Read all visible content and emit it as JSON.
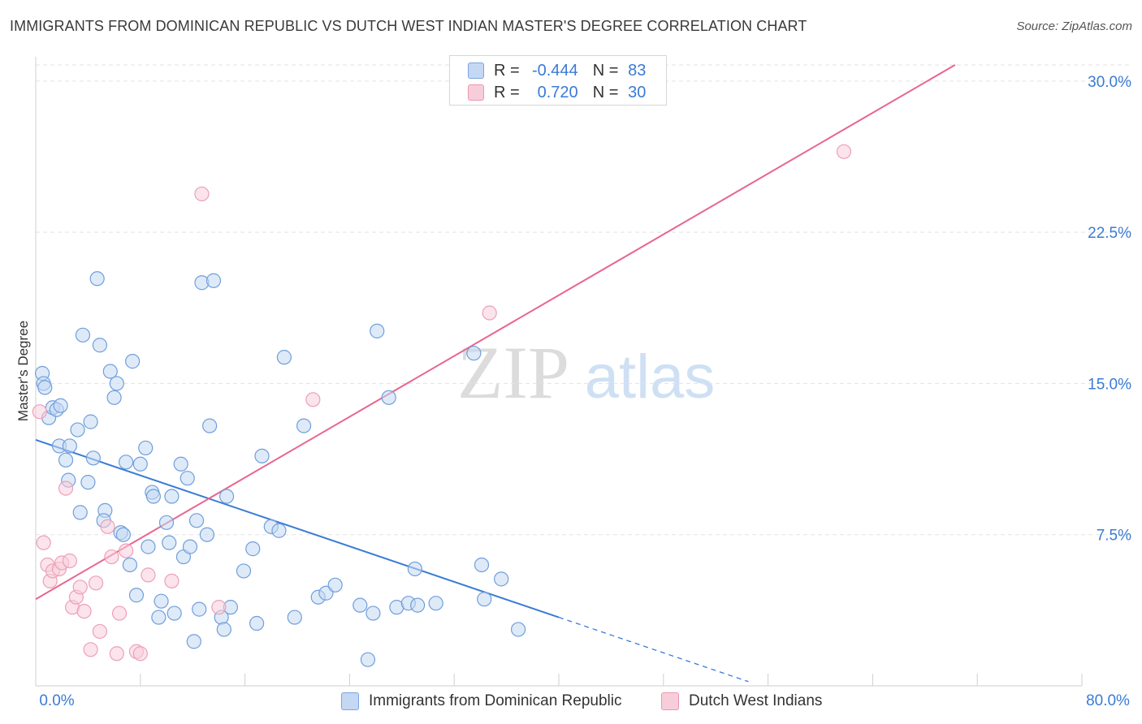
{
  "title": "IMMIGRANTS FROM DOMINICAN REPUBLIC VS DUTCH WEST INDIAN MASTER'S DEGREE CORRELATION CHART",
  "source": "Source: ZipAtlas.com",
  "colors": {
    "blue": "#3a7bd5",
    "blue_fill": "#c5d8f3",
    "pink": "#e8668f",
    "pink_fill": "#f8cdda",
    "grid": "#e3e3e3",
    "tick_label": "#3a7bd5"
  },
  "legend": {
    "series1": {
      "r_label": "R =",
      "r_value": "-0.444",
      "n_label": "N =",
      "n_value": "83"
    },
    "series2": {
      "r_label": "R =",
      "r_value": "0.720",
      "n_label": "N =",
      "n_value": "30"
    }
  },
  "watermark": {
    "zip": "ZIP",
    "atlas": "atlas"
  },
  "chart_data": {
    "type": "scatter",
    "title": "IMMIGRANTS FROM DOMINICAN REPUBLIC VS DUTCH WEST INDIAN MASTER'S DEGREE CORRELATION CHART",
    "xlabel": "",
    "ylabel": "Master's Degree",
    "xlim": [
      0,
      80
    ],
    "ylim": [
      0,
      30.8
    ],
    "x_tick_labels": [
      "0.0%",
      "80.0%"
    ],
    "y_ticks": [
      7.5,
      15.0,
      22.5,
      30.0
    ],
    "y_tick_labels": [
      "7.5%",
      "15.0%",
      "22.5%",
      "30.0%"
    ],
    "legend_position": "top-center",
    "series": [
      {
        "name": "Immigrants from Dominican Republic",
        "color": "#3a7bd5",
        "r": -0.444,
        "n": 83,
        "trend": {
          "x0": 0,
          "y0": 12.2,
          "x1": 40,
          "y1": 3.4,
          "dash_to_x": 54.5
        },
        "points": [
          [
            0.5,
            15.5
          ],
          [
            0.6,
            15.0
          ],
          [
            0.7,
            14.8
          ],
          [
            1.0,
            13.3
          ],
          [
            1.3,
            13.8
          ],
          [
            1.6,
            13.7
          ],
          [
            1.9,
            13.9
          ],
          [
            1.8,
            11.9
          ],
          [
            2.3,
            11.2
          ],
          [
            2.6,
            11.9
          ],
          [
            2.5,
            10.2
          ],
          [
            3.2,
            12.7
          ],
          [
            3.4,
            8.6
          ],
          [
            3.6,
            17.4
          ],
          [
            4.0,
            10.1
          ],
          [
            4.2,
            13.1
          ],
          [
            4.4,
            11.3
          ],
          [
            4.7,
            20.2
          ],
          [
            4.9,
            16.9
          ],
          [
            5.3,
            8.7
          ],
          [
            5.2,
            8.2
          ],
          [
            5.7,
            15.6
          ],
          [
            6.0,
            14.3
          ],
          [
            6.2,
            15.0
          ],
          [
            6.5,
            7.6
          ],
          [
            6.7,
            7.5
          ],
          [
            6.9,
            11.1
          ],
          [
            7.2,
            6.0
          ],
          [
            7.4,
            16.1
          ],
          [
            7.7,
            4.5
          ],
          [
            8.0,
            11.0
          ],
          [
            8.4,
            11.8
          ],
          [
            8.6,
            6.9
          ],
          [
            8.9,
            9.6
          ],
          [
            9.0,
            9.4
          ],
          [
            9.4,
            3.4
          ],
          [
            9.6,
            4.2
          ],
          [
            10.0,
            8.1
          ],
          [
            10.2,
            7.1
          ],
          [
            10.4,
            9.4
          ],
          [
            10.6,
            3.6
          ],
          [
            11.1,
            11.0
          ],
          [
            11.3,
            6.4
          ],
          [
            11.6,
            10.3
          ],
          [
            11.8,
            6.9
          ],
          [
            12.1,
            2.2
          ],
          [
            12.3,
            8.2
          ],
          [
            12.5,
            3.8
          ],
          [
            12.7,
            20.0
          ],
          [
            13.1,
            7.5
          ],
          [
            13.3,
            12.9
          ],
          [
            13.6,
            20.1
          ],
          [
            14.2,
            3.4
          ],
          [
            14.4,
            2.8
          ],
          [
            14.6,
            9.4
          ],
          [
            14.9,
            3.9
          ],
          [
            15.9,
            5.7
          ],
          [
            16.6,
            6.8
          ],
          [
            16.9,
            3.1
          ],
          [
            17.3,
            11.4
          ],
          [
            18.0,
            7.9
          ],
          [
            18.6,
            7.7
          ],
          [
            19.0,
            16.3
          ],
          [
            19.8,
            3.4
          ],
          [
            20.5,
            12.9
          ],
          [
            21.6,
            4.4
          ],
          [
            22.2,
            4.6
          ],
          [
            22.9,
            5.0
          ],
          [
            24.8,
            4.0
          ],
          [
            25.4,
            1.3
          ],
          [
            25.8,
            3.6
          ],
          [
            26.1,
            17.6
          ],
          [
            27.0,
            14.3
          ],
          [
            27.6,
            3.9
          ],
          [
            28.5,
            4.1
          ],
          [
            29.0,
            5.8
          ],
          [
            29.2,
            4.0
          ],
          [
            30.6,
            4.1
          ],
          [
            33.5,
            16.5
          ],
          [
            34.1,
            6.0
          ],
          [
            34.3,
            4.3
          ],
          [
            35.6,
            5.3
          ],
          [
            36.9,
            2.8
          ]
        ]
      },
      {
        "name": "Dutch West Indians",
        "color": "#e8668f",
        "r": 0.72,
        "n": 30,
        "trend": {
          "x0": 0,
          "y0": 4.3,
          "x1": 70.3,
          "y1": 30.8
        },
        "points": [
          [
            0.3,
            13.6
          ],
          [
            0.6,
            7.1
          ],
          [
            0.9,
            6.0
          ],
          [
            1.1,
            5.2
          ],
          [
            1.3,
            5.7
          ],
          [
            1.8,
            5.8
          ],
          [
            2.0,
            6.1
          ],
          [
            2.3,
            9.8
          ],
          [
            2.6,
            6.2
          ],
          [
            2.8,
            3.9
          ],
          [
            3.1,
            4.4
          ],
          [
            3.4,
            4.9
          ],
          [
            3.7,
            3.7
          ],
          [
            4.2,
            1.8
          ],
          [
            4.6,
            5.1
          ],
          [
            4.9,
            2.7
          ],
          [
            5.5,
            7.9
          ],
          [
            5.8,
            6.4
          ],
          [
            6.2,
            1.6
          ],
          [
            6.4,
            3.6
          ],
          [
            6.9,
            6.7
          ],
          [
            7.7,
            1.7
          ],
          [
            8.0,
            1.6
          ],
          [
            8.6,
            5.5
          ],
          [
            10.4,
            5.2
          ],
          [
            12.7,
            24.4
          ],
          [
            14.0,
            3.9
          ],
          [
            21.2,
            14.2
          ],
          [
            34.7,
            18.5
          ],
          [
            61.8,
            26.5
          ]
        ]
      }
    ]
  }
}
